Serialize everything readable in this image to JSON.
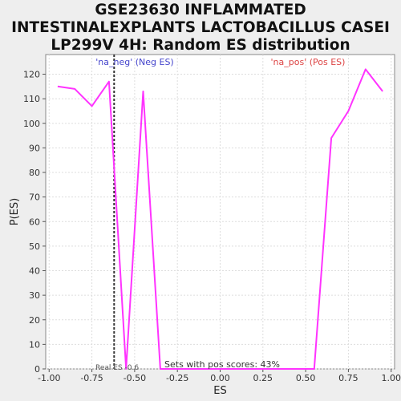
{
  "title_lines": [
    "GSE23630 INFLAMMATED",
    "INTESTINALEXPLANTS LACTOBACILLUS CASEI",
    "LP299V 4H: Random ES distribution"
  ],
  "colors": {
    "background": "#eeeeee",
    "plot_bg": "#ffffff",
    "curve": "#ff33ff",
    "neg_label": "#4444cc",
    "pos_label": "#dd4444",
    "grid": "#dddddd",
    "real_es_line": "#333333"
  },
  "chart_data": {
    "type": "line",
    "title": "GSE23630 INFLAMMATED INTESTINALEXPLANTS LACTOBACILLUS CASEI LP299V 4H: Random ES distribution",
    "xlabel": "ES",
    "ylabel": "P(ES)",
    "xlim": [
      -1.02,
      1.02
    ],
    "ylim": [
      0,
      128
    ],
    "xticks": [
      -1.0,
      -0.75,
      -0.5,
      -0.25,
      0.0,
      0.25,
      0.5,
      0.75,
      1.0
    ],
    "xtick_labels": [
      "-1.00",
      "-0.75",
      "-0.50",
      "-0.25",
      "0.00",
      "0.25",
      "0.50",
      "0.75",
      "1.00"
    ],
    "yticks": [
      0,
      10,
      20,
      30,
      40,
      50,
      60,
      70,
      80,
      90,
      100,
      110,
      120
    ],
    "grid": true,
    "series": [
      {
        "x": [
          -0.95,
          -0.85,
          -0.75,
          -0.65,
          -0.55,
          -0.45,
          -0.35,
          -0.25,
          -0.15,
          -0.05,
          0.05,
          0.15,
          0.25,
          0.35,
          0.45,
          0.55,
          0.65,
          0.75,
          0.85,
          0.95
        ],
        "y": [
          115,
          114,
          107,
          117,
          0,
          113,
          0,
          0,
          0,
          0,
          0,
          0,
          0,
          0,
          0,
          0,
          94,
          105,
          122,
          113
        ]
      }
    ],
    "real_es": -0.62,
    "annotations": {
      "neg_label": "'na_neg' (Neg ES)",
      "pos_label": "'na_pos' (Pos ES)",
      "real_es_label": "Real ES -0.6",
      "pos_scores_label": "Sets with pos scores: 43%"
    }
  }
}
